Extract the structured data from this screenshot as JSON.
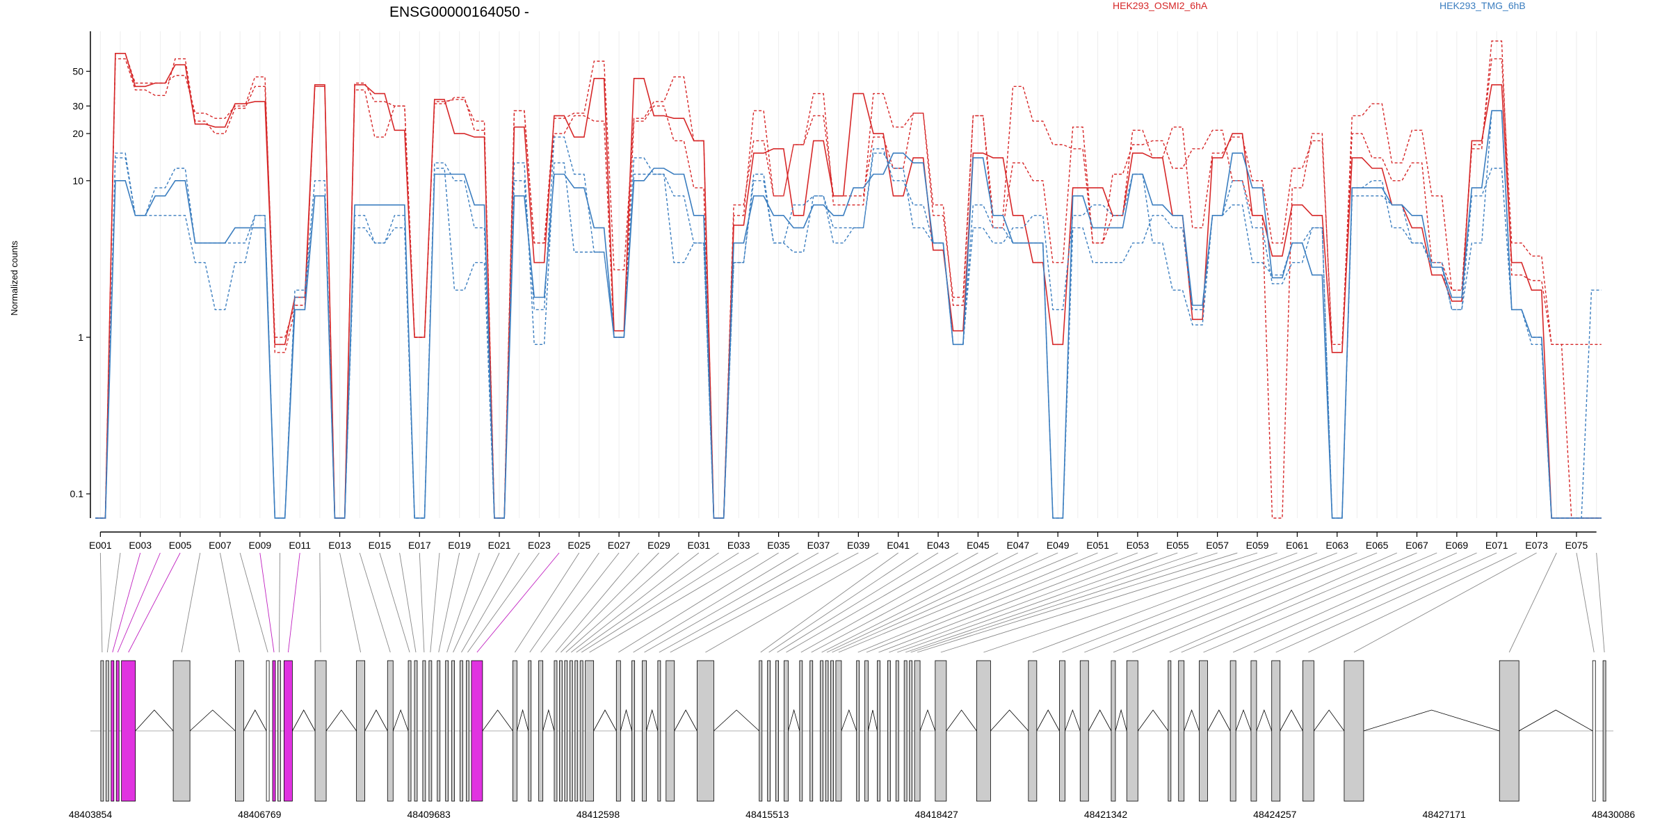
{
  "chart_data": {
    "type": "line",
    "title": "ENSG00000164050 -",
    "ylabel": "Normalized counts",
    "y_scale": "log",
    "ylim": [
      0.07,
      90
    ],
    "y_ticks": [
      "0.1",
      "1",
      "10",
      "20",
      "30",
      "50"
    ],
    "grid": true,
    "legend_placement": "top-right",
    "legend": [
      {
        "label": "HEK293_OSMI2_6hA",
        "color": "#d62728"
      },
      {
        "label": "HEK293_TMG_6hB",
        "color": "#3a7dbf"
      }
    ],
    "exon_count": 76,
    "x_tick_labels": [
      "E001",
      "E003",
      "E005",
      "E007",
      "E009",
      "E011",
      "E013",
      "E015",
      "E017",
      "E019",
      "E021",
      "E023",
      "E025",
      "E027",
      "E029",
      "E031",
      "E033",
      "E035",
      "E037",
      "E039",
      "E041",
      "E043",
      "E045",
      "E047",
      "E049",
      "E051",
      "E053",
      "E055",
      "E057",
      "E059",
      "E061",
      "E063",
      "E065",
      "E067",
      "E069",
      "E071",
      "E073",
      "E075"
    ],
    "series": [
      {
        "name": "HEK293_OSMI2_6hA",
        "color": "#d62728",
        "dash": "solid",
        "values": [
          0.07,
          65,
          40,
          42,
          55,
          23,
          22,
          31,
          32,
          0.9,
          1.8,
          41,
          0.07,
          41,
          36,
          21,
          1,
          33,
          20,
          19,
          0.07,
          22,
          3,
          26,
          19,
          45,
          1.1,
          45,
          26,
          25,
          18,
          0.07,
          5.2,
          15,
          16,
          6,
          18,
          8,
          36,
          20,
          8,
          14,
          3.6,
          1.1,
          15,
          14,
          6,
          3,
          0.9,
          9,
          9,
          6,
          15,
          14,
          6,
          1.3,
          14,
          20,
          6,
          3.3,
          7,
          6,
          0.8,
          14,
          12,
          7,
          5,
          2.5,
          1.7,
          18,
          41,
          3,
          2,
          0.07,
          0.07,
          0.07
        ]
      },
      {
        "name": "HEK293_OSMI2_6hA",
        "color": "#d62728",
        "dash": "dashed",
        "values": [
          0.07,
          60,
          38,
          35,
          60,
          24,
          20,
          29,
          40,
          1,
          1.6,
          40,
          0.07,
          38,
          19,
          30,
          1,
          32,
          33,
          24,
          0.07,
          28,
          4,
          20,
          26,
          24,
          1,
          24,
          30,
          18,
          9,
          0.07,
          7,
          18,
          8,
          17,
          26,
          8,
          8,
          19,
          12,
          27,
          7,
          1.6,
          26,
          5,
          13,
          10,
          3,
          22,
          4,
          6,
          21,
          14,
          22,
          5,
          15,
          19,
          10,
          4,
          12,
          18,
          0.9,
          20,
          14,
          10,
          13,
          3,
          2,
          16,
          78,
          2.5,
          2.3,
          0.9,
          0.9,
          0.9
        ]
      },
      {
        "name": "HEK293_OSMI2_6hA",
        "color": "#d62728",
        "dash": "dashed",
        "values": [
          0.07,
          65,
          42,
          42,
          47,
          27,
          25,
          30,
          46,
          0.8,
          1.5,
          40,
          0.07,
          42,
          32,
          30,
          1,
          31,
          34,
          21,
          0.07,
          28,
          4,
          25,
          27,
          58,
          2.7,
          25,
          32,
          46,
          18,
          0.07,
          6,
          28,
          8,
          17,
          36,
          7,
          7,
          36,
          22,
          27,
          6,
          1.8,
          26,
          6,
          40,
          24,
          17,
          16,
          4,
          11,
          17,
          18,
          12,
          16,
          21,
          10,
          6,
          0.07,
          9,
          20,
          0.8,
          26,
          31,
          13,
          21,
          8,
          2,
          17,
          60,
          4,
          3.3,
          0.9,
          0.07,
          0.07
        ]
      },
      {
        "name": "HEK293_TMG_6hB",
        "color": "#3a7dbf",
        "dash": "solid",
        "values": [
          0.07,
          10,
          6,
          8,
          10,
          4,
          4,
          5,
          5,
          0.07,
          1.5,
          8,
          0.07,
          7,
          7,
          7,
          0.07,
          11,
          11,
          7,
          0.07,
          8,
          1.8,
          11,
          9,
          5,
          1,
          10,
          12,
          11,
          6,
          0.07,
          4,
          8,
          6,
          5,
          7,
          6,
          9,
          11,
          15,
          13,
          4,
          0.9,
          14,
          6,
          4,
          4,
          0.07,
          8,
          5,
          5,
          11,
          7,
          6,
          1.6,
          6,
          15,
          9,
          2.4,
          4,
          2.5,
          0.07,
          9,
          9,
          7,
          6,
          2.8,
          1.8,
          9,
          28,
          1.5,
          1,
          0.07,
          0.07,
          0.07
        ]
      },
      {
        "name": "HEK293_TMG_6hB",
        "color": "#3a7dbf",
        "dash": "dashed",
        "values": [
          0.07,
          15,
          6,
          9,
          12,
          4,
          4,
          4,
          6,
          0.07,
          2,
          10,
          0.07,
          5,
          4,
          5,
          0.07,
          13,
          10,
          5,
          0.07,
          10,
          1.5,
          19,
          11,
          3.5,
          1,
          14,
          11,
          3,
          4,
          0.07,
          3,
          10,
          4,
          3.5,
          8,
          4,
          5,
          15,
          12,
          5,
          4,
          0.9,
          7,
          5,
          4,
          4,
          0.07,
          5,
          3,
          3,
          4,
          6,
          5,
          1.5,
          6,
          7,
          3,
          2.5,
          4,
          5,
          0.07,
          8,
          8,
          7,
          4,
          2.8,
          1.5,
          4,
          28,
          1.5,
          0.9,
          0.07,
          0.07,
          0.07
        ]
      },
      {
        "name": "HEK293_TMG_6hB",
        "color": "#3a7dbf",
        "dash": "dashed",
        "values": [
          0.07,
          14,
          6,
          6,
          6,
          3,
          1.5,
          3,
          6,
          0.07,
          1.8,
          8,
          0.07,
          6,
          4,
          6,
          0.07,
          12,
          2,
          3,
          0.07,
          13,
          0.9,
          13,
          3.5,
          3.5,
          1,
          11,
          11,
          8,
          4,
          0.07,
          3,
          11,
          4,
          7,
          8,
          5,
          5,
          16,
          10,
          7,
          4,
          0.9,
          5,
          4,
          5,
          6,
          1.5,
          6,
          7,
          6,
          11,
          4,
          2,
          1.2,
          6,
          10,
          5,
          2.2,
          3,
          5,
          0.07,
          9,
          10,
          5,
          4,
          3,
          1.5,
          8,
          12,
          1.5,
          1,
          0.07,
          0.07,
          2
        ]
      }
    ],
    "genomic_coordinates": [
      "48403854",
      "48406769",
      "48409683",
      "48412598",
      "48415513",
      "48418427",
      "48421342",
      "48424257",
      "48427171",
      "48430086"
    ],
    "highlighted_exons": [
      "E003",
      "E004",
      "E005",
      "E009",
      "E011",
      "E024"
    ]
  }
}
